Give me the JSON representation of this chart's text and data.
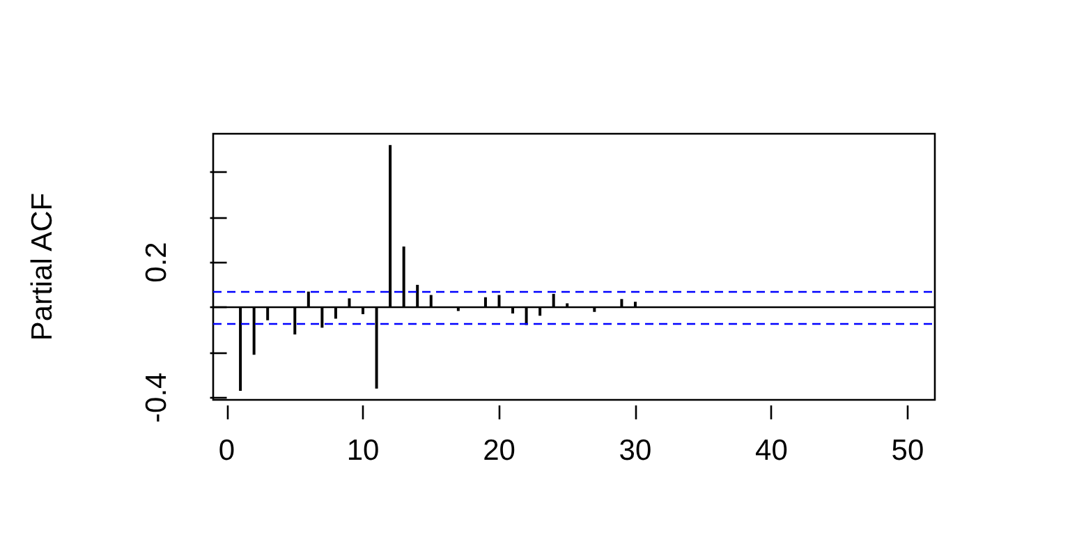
{
  "chart_data": {
    "type": "bar",
    "ylabel": "Partial ACF",
    "x": [
      1,
      2,
      3,
      4,
      5,
      6,
      7,
      8,
      9,
      10,
      11,
      12,
      13,
      14,
      15,
      16,
      17,
      18,
      19,
      20,
      21,
      22,
      23,
      24,
      25,
      26,
      27,
      28,
      29,
      30
    ],
    "values": [
      -0.37,
      -0.21,
      -0.057,
      null,
      -0.12,
      0.07,
      -0.09,
      -0.05,
      0.04,
      -0.03,
      -0.36,
      0.72,
      0.27,
      0.1,
      0.055,
      null,
      -0.016,
      null,
      0.045,
      0.055,
      -0.027,
      -0.078,
      -0.037,
      0.06,
      0.018,
      null,
      -0.02,
      null,
      0.037,
      0.025
    ],
    "color": "#000000",
    "xlim": [
      -1,
      52
    ],
    "xticks": [
      0,
      10,
      20,
      30,
      40,
      50
    ],
    "ylim": [
      -0.41,
      0.77
    ],
    "yticks": [
      -0.4,
      {
        "value": -0.2,
        "label": null
      },
      {
        "value": 0,
        "label": null
      },
      0.2,
      {
        "value": 0.4,
        "label": null
      },
      {
        "value": 0.6,
        "label": null
      }
    ],
    "ref_lines": [
      {
        "axis": "y",
        "value": 0,
        "color": "#000000",
        "line_style": "solid"
      },
      {
        "axis": "y",
        "value": 0.065,
        "color": "#0000ff",
        "line_style": "dashed"
      },
      {
        "axis": "y",
        "value": -0.065,
        "color": "#0000ff",
        "line_style": "dashed"
      }
    ],
    "grid": false
  }
}
